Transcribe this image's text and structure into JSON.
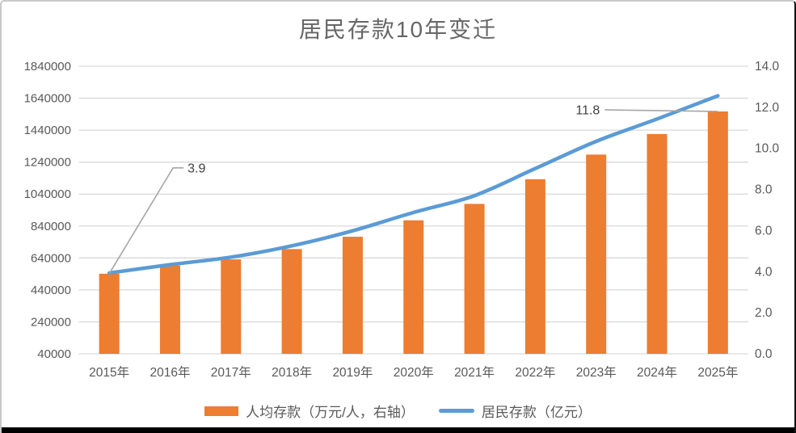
{
  "chart_data": {
    "type": "combo-bar-line",
    "title": "居民存款10年变迁",
    "categories": [
      "2015年",
      "2016年",
      "2017年",
      "2018年",
      "2019年",
      "2020年",
      "2021年",
      "2022年",
      "2023年",
      "2024年",
      "2025年"
    ],
    "series": [
      {
        "name": "人均存款（万元/人，右轴）",
        "type": "bar",
        "axis": "right",
        "color": "#ED7D31",
        "values": [
          3.9,
          4.3,
          4.6,
          5.1,
          5.7,
          6.5,
          7.3,
          8.5,
          9.7,
          10.7,
          11.8
        ]
      },
      {
        "name": "居民存款（亿元）",
        "type": "line",
        "axis": "left",
        "color": "#5B9BD5",
        "values": [
          546000,
          598000,
          645000,
          716000,
          810000,
          925000,
          1030000,
          1200000,
          1370000,
          1510000,
          1655000
        ]
      }
    ],
    "left_axis": {
      "min": 40000,
      "max": 1840000,
      "tick_labels": [
        "1840000",
        "1640000",
        "1440000",
        "1240000",
        "1040000",
        "840000",
        "640000",
        "440000",
        "240000",
        "40000"
      ]
    },
    "right_axis": {
      "min": 0.0,
      "max": 14.0,
      "tick_labels": [
        "14.0",
        "12.0",
        "10.0",
        "8.0",
        "6.0",
        "4.0",
        "2.0",
        "0.0"
      ]
    },
    "annotations": [
      {
        "text": "3.9",
        "series_index": 0,
        "category_index": 0
      },
      {
        "text": "11.8",
        "series_index": 0,
        "category_index": 10
      }
    ],
    "legend": {
      "position": "bottom"
    },
    "grid": true,
    "colors": {
      "bar": "#ED7D31",
      "line": "#5B9BD5",
      "grid": "#D9D9D9",
      "axis_text": "#595959",
      "title_text": "#666666",
      "annotation_text": "#404040",
      "leader": "#A6A6A6"
    }
  }
}
